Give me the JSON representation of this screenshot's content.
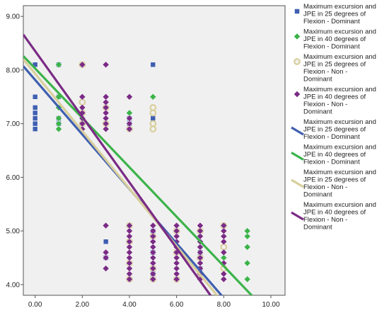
{
  "chart_data": {
    "type": "scatter",
    "title": "",
    "xlabel": "",
    "ylabel": "",
    "xlim": [
      -0.5,
      10.6
    ],
    "ylim": [
      3.8,
      9.2
    ],
    "x_ticks": [
      "0.00",
      "2.00",
      "4.00",
      "6.00",
      "8.00",
      "10.00"
    ],
    "x_tick_values": [
      0,
      2,
      4,
      6,
      8,
      10
    ],
    "y_ticks": [
      "4.00",
      "5.00",
      "6.00",
      "7.00",
      "8.00",
      "9.00"
    ],
    "y_tick_values": [
      4,
      5,
      6,
      7,
      8,
      9
    ],
    "grid": false,
    "legend_position": "right",
    "series": [
      {
        "name": "Maximum excursion and JPE in 25 degrees of Flexion - Dominant",
        "color": "#3f5fb0",
        "marker": "square",
        "points": [
          [
            0,
            6.9
          ],
          [
            0,
            7.0
          ],
          [
            0,
            7.1
          ],
          [
            0,
            7.2
          ],
          [
            0,
            7.3
          ],
          [
            0,
            7.5
          ],
          [
            0,
            8.1
          ],
          [
            1,
            7.0
          ],
          [
            1,
            7.1
          ],
          [
            1,
            7.5
          ],
          [
            1,
            8.1
          ],
          [
            3,
            4.5
          ],
          [
            3,
            4.8
          ],
          [
            4,
            6.9
          ],
          [
            4,
            7.0
          ],
          [
            4,
            7.1
          ],
          [
            5,
            6.9
          ],
          [
            5,
            7.0
          ],
          [
            5,
            7.1
          ],
          [
            5,
            8.1
          ],
          [
            5,
            4.2
          ],
          [
            5,
            4.6
          ],
          [
            5,
            5.0
          ],
          [
            7,
            4.3
          ],
          [
            7,
            4.6
          ]
        ],
        "fit_line": {
          "x": [
            -0.5,
            8.1
          ],
          "y": [
            8.07,
            3.7
          ]
        }
      },
      {
        "name": "Maximum excursion and JPE in 40 degrees of Flexion - Dominant",
        "color": "#3cb34a",
        "marker": "diamond",
        "points": [
          [
            1,
            6.9
          ],
          [
            1,
            7.0
          ],
          [
            1,
            7.1
          ],
          [
            1,
            7.3
          ],
          [
            1,
            7.5
          ],
          [
            1,
            8.1
          ],
          [
            4,
            7.2
          ],
          [
            4,
            7.0
          ],
          [
            5,
            7.5
          ],
          [
            5,
            7.2
          ],
          [
            5,
            7.0
          ],
          [
            6,
            4.2
          ],
          [
            6,
            4.5
          ],
          [
            7,
            4.6
          ],
          [
            7,
            4.8
          ],
          [
            7,
            5.0
          ],
          [
            8,
            4.2
          ],
          [
            8,
            4.5
          ],
          [
            8,
            4.8
          ],
          [
            8,
            5.0
          ],
          [
            9,
            4.1
          ],
          [
            9,
            4.4
          ],
          [
            9,
            4.7
          ],
          [
            9,
            4.9
          ],
          [
            9,
            5.0
          ]
        ],
        "fit_line": {
          "x": [
            -0.5,
            9.4
          ],
          "y": [
            8.26,
            3.7
          ]
        }
      },
      {
        "name": "Maximum excursion and JPE in 25 degrees of Flexion - Non - Dominant",
        "color": "#d8cf9c",
        "marker": "circle",
        "points": [
          [
            2,
            7.0
          ],
          [
            2,
            7.2
          ],
          [
            2,
            7.4
          ],
          [
            2,
            8.1
          ],
          [
            3,
            7.0
          ],
          [
            3,
            7.3
          ],
          [
            4,
            6.9
          ],
          [
            4,
            4.1
          ],
          [
            4,
            4.4
          ],
          [
            4,
            4.8
          ],
          [
            4,
            5.1
          ],
          [
            5,
            6.9
          ],
          [
            5,
            7.0
          ],
          [
            5,
            7.2
          ],
          [
            5,
            7.3
          ],
          [
            5,
            4.1
          ],
          [
            5,
            4.3
          ],
          [
            5,
            4.9
          ],
          [
            6,
            4.1
          ],
          [
            6,
            4.6
          ],
          [
            6,
            5.0
          ],
          [
            7,
            4.2
          ],
          [
            7,
            4.5
          ],
          [
            7,
            5.0
          ],
          [
            8,
            4.3
          ],
          [
            8,
            4.7
          ],
          [
            8,
            5.1
          ]
        ],
        "fit_line": {
          "x": [
            -0.5,
            7.9
          ],
          "y": [
            8.2,
            3.7
          ]
        }
      },
      {
        "name": "Maximum excursion and JPE in 40 degrees of Flexion - Non - Dominant",
        "color": "#7a2b85",
        "marker": "diamond",
        "points": [
          [
            2,
            6.9
          ],
          [
            2,
            7.0
          ],
          [
            2,
            7.1
          ],
          [
            2,
            7.2
          ],
          [
            2,
            7.3
          ],
          [
            2,
            7.5
          ],
          [
            2,
            8.1
          ],
          [
            3,
            6.9
          ],
          [
            3,
            7.0
          ],
          [
            3,
            7.1
          ],
          [
            3,
            7.2
          ],
          [
            3,
            7.3
          ],
          [
            3,
            7.4
          ],
          [
            3,
            7.5
          ],
          [
            3,
            8.1
          ],
          [
            3,
            4.3
          ],
          [
            3,
            4.5
          ],
          [
            3,
            4.6
          ],
          [
            3,
            5.1
          ],
          [
            4,
            6.9
          ],
          [
            4,
            7.0
          ],
          [
            4,
            7.1
          ],
          [
            4,
            7.5
          ],
          [
            4,
            4.1
          ],
          [
            4,
            4.2
          ],
          [
            4,
            4.3
          ],
          [
            4,
            4.4
          ],
          [
            4,
            4.5
          ],
          [
            4,
            4.6
          ],
          [
            4,
            4.7
          ],
          [
            4,
            4.8
          ],
          [
            4,
            4.9
          ],
          [
            4,
            5.0
          ],
          [
            4,
            5.1
          ],
          [
            5,
            4.1
          ],
          [
            5,
            4.2
          ],
          [
            5,
            4.3
          ],
          [
            5,
            4.4
          ],
          [
            5,
            4.5
          ],
          [
            5,
            4.6
          ],
          [
            5,
            4.7
          ],
          [
            5,
            4.8
          ],
          [
            5,
            4.9
          ],
          [
            5,
            5.0
          ],
          [
            5,
            5.1
          ],
          [
            6,
            4.1
          ],
          [
            6,
            4.2
          ],
          [
            6,
            4.3
          ],
          [
            6,
            4.4
          ],
          [
            6,
            4.5
          ],
          [
            6,
            4.6
          ],
          [
            6,
            4.7
          ],
          [
            6,
            4.8
          ],
          [
            6,
            4.9
          ],
          [
            6,
            5.0
          ],
          [
            6,
            5.1
          ],
          [
            7,
            4.1
          ],
          [
            7,
            4.2
          ],
          [
            7,
            4.3
          ],
          [
            7,
            4.4
          ],
          [
            7,
            4.5
          ],
          [
            7,
            4.6
          ],
          [
            7,
            4.7
          ],
          [
            7,
            4.8
          ],
          [
            7,
            4.9
          ],
          [
            7,
            5.0
          ],
          [
            7,
            5.1
          ],
          [
            8,
            4.1
          ],
          [
            8,
            4.2
          ],
          [
            8,
            4.4
          ],
          [
            8,
            4.6
          ],
          [
            8,
            4.8
          ],
          [
            8,
            4.9
          ],
          [
            8,
            5.0
          ],
          [
            8,
            5.1
          ]
        ],
        "fit_line": {
          "x": [
            -0.5,
            7.6
          ],
          "y": [
            8.66,
            3.7
          ]
        }
      }
    ],
    "legend": {
      "markers": [
        {
          "lines": [
            "Maximum excursion and",
            "JPE in 25 degrees of",
            "Flexion - Dominant"
          ],
          "color": "#3f5fb0",
          "kind": "square"
        },
        {
          "lines": [
            "Maximum excursion and",
            "JPE in 40 degrees of",
            "Flexion - Dominant"
          ],
          "color": "#3cb34a",
          "kind": "diamond"
        },
        {
          "lines": [
            "Maximum excursion and",
            "JPE in 25 degrees of",
            "Flexion - Non -",
            "Dominant"
          ],
          "color": "#d8cf9c",
          "kind": "circle"
        },
        {
          "lines": [
            "Maximum excursion and",
            "JPE in 40 degrees of",
            "Flexion - Non -",
            "Dominant"
          ],
          "color": "#7a2b85",
          "kind": "diamond"
        }
      ],
      "lines": [
        {
          "lines": [
            "Maximum excursion and",
            "JPE in 25 degrees of",
            "Flexion - Dominant"
          ],
          "color": "#3f5fb0"
        },
        {
          "lines": [
            "Maximum excursion and",
            "JPE in 40 degrees of",
            "Flexion - Dominant"
          ],
          "color": "#3cb34a"
        },
        {
          "lines": [
            "Maximum excursion and",
            "JPE in 25 degrees of",
            "Flexion - Non -",
            "Dominant"
          ],
          "color": "#d8cf9c"
        },
        {
          "lines": [
            "Maximum excursion and",
            "JPE in 40 degrees of",
            "Flexion - Non -",
            "Dominant"
          ],
          "color": "#7a2b85"
        }
      ]
    }
  }
}
